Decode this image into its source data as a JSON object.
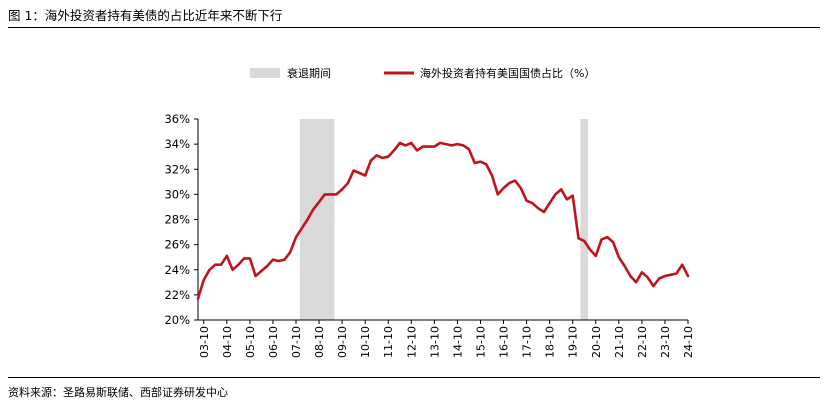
{
  "figure_title": "图 1：海外投资者持有美债的占比近年来不断下行",
  "source": "资料来源：圣路易斯联储、西部证券研发中心",
  "colors": {
    "series": "#c0141c",
    "recession": "#d9d9d9",
    "axis": "#000000"
  },
  "chart_data": {
    "type": "line",
    "title": "",
    "xlabel": "",
    "ylabel": "",
    "ylim": [
      20,
      36
    ],
    "y_ticks": [
      "20%",
      "22%",
      "24%",
      "26%",
      "28%",
      "30%",
      "32%",
      "34%",
      "36%"
    ],
    "x_range": [
      "2003-07",
      "2024-10"
    ],
    "x_ticks": [
      "03-10",
      "04-10",
      "05-10",
      "06-10",
      "07-10",
      "08-10",
      "09-10",
      "10-10",
      "11-10",
      "12-10",
      "13-10",
      "14-10",
      "15-10",
      "16-10",
      "17-10",
      "18-10",
      "19-10",
      "20-10",
      "21-10",
      "22-10",
      "23-10",
      "24-10"
    ],
    "grid": false,
    "legend_position": "top",
    "shaded_periods": [
      {
        "name": "衰退期间",
        "start": "2007-12",
        "end": "2009-06"
      },
      {
        "name": "衰退期间",
        "start": "2020-02",
        "end": "2020-06"
      }
    ],
    "series": [
      {
        "name": "海外投资者持有美国国债占比（%）",
        "points": [
          [
            "2003-07",
            21.7
          ],
          [
            "2003-10",
            23.2
          ],
          [
            "2004-01",
            24.0
          ],
          [
            "2004-04",
            24.4
          ],
          [
            "2004-07",
            24.4
          ],
          [
            "2004-10",
            25.1
          ],
          [
            "2005-01",
            24.0
          ],
          [
            "2005-04",
            24.4
          ],
          [
            "2005-07",
            24.9
          ],
          [
            "2005-10",
            24.9
          ],
          [
            "2006-01",
            23.5
          ],
          [
            "2006-04",
            23.9
          ],
          [
            "2006-07",
            24.3
          ],
          [
            "2006-10",
            24.8
          ],
          [
            "2007-01",
            24.7
          ],
          [
            "2007-04",
            24.8
          ],
          [
            "2007-07",
            25.4
          ],
          [
            "2007-10",
            26.6
          ],
          [
            "2008-01",
            27.3
          ],
          [
            "2008-04",
            28.0
          ],
          [
            "2008-07",
            28.8
          ],
          [
            "2008-10",
            29.4
          ],
          [
            "2009-01",
            30.0
          ],
          [
            "2009-04",
            30.0
          ],
          [
            "2009-07",
            30.0
          ],
          [
            "2009-10",
            30.4
          ],
          [
            "2010-01",
            30.9
          ],
          [
            "2010-04",
            31.9
          ],
          [
            "2010-07",
            31.7
          ],
          [
            "2010-10",
            31.5
          ],
          [
            "2011-01",
            32.7
          ],
          [
            "2011-04",
            33.1
          ],
          [
            "2011-07",
            32.9
          ],
          [
            "2011-10",
            33.0
          ],
          [
            "2012-01",
            33.5
          ],
          [
            "2012-04",
            34.1
          ],
          [
            "2012-07",
            33.9
          ],
          [
            "2012-10",
            34.1
          ],
          [
            "2013-01",
            33.5
          ],
          [
            "2013-04",
            33.8
          ],
          [
            "2013-07",
            33.8
          ],
          [
            "2013-10",
            33.8
          ],
          [
            "2014-01",
            34.1
          ],
          [
            "2014-04",
            34.0
          ],
          [
            "2014-07",
            33.9
          ],
          [
            "2014-10",
            34.0
          ],
          [
            "2015-01",
            33.9
          ],
          [
            "2015-04",
            33.6
          ],
          [
            "2015-07",
            32.5
          ],
          [
            "2015-10",
            32.6
          ],
          [
            "2016-01",
            32.4
          ],
          [
            "2016-04",
            31.5
          ],
          [
            "2016-07",
            30.0
          ],
          [
            "2016-10",
            30.5
          ],
          [
            "2017-01",
            30.9
          ],
          [
            "2017-04",
            31.1
          ],
          [
            "2017-07",
            30.5
          ],
          [
            "2017-10",
            29.5
          ],
          [
            "2018-01",
            29.3
          ],
          [
            "2018-04",
            28.9
          ],
          [
            "2018-07",
            28.6
          ],
          [
            "2018-10",
            29.3
          ],
          [
            "2019-01",
            30.0
          ],
          [
            "2019-04",
            30.4
          ],
          [
            "2019-07",
            29.6
          ],
          [
            "2019-10",
            29.9
          ],
          [
            "2020-01",
            26.5
          ],
          [
            "2020-04",
            26.3
          ],
          [
            "2020-07",
            25.6
          ],
          [
            "2020-10",
            25.1
          ],
          [
            "2021-01",
            26.4
          ],
          [
            "2021-04",
            26.6
          ],
          [
            "2021-07",
            26.2
          ],
          [
            "2021-10",
            25.0
          ],
          [
            "2022-01",
            24.3
          ],
          [
            "2022-04",
            23.5
          ],
          [
            "2022-07",
            23.0
          ],
          [
            "2022-10",
            23.8
          ],
          [
            "2023-01",
            23.4
          ],
          [
            "2023-04",
            22.7
          ],
          [
            "2023-07",
            23.3
          ],
          [
            "2023-10",
            23.5
          ],
          [
            "2024-01",
            23.6
          ],
          [
            "2024-04",
            23.7
          ],
          [
            "2024-07",
            24.4
          ],
          [
            "2024-10",
            23.5
          ]
        ]
      }
    ]
  }
}
